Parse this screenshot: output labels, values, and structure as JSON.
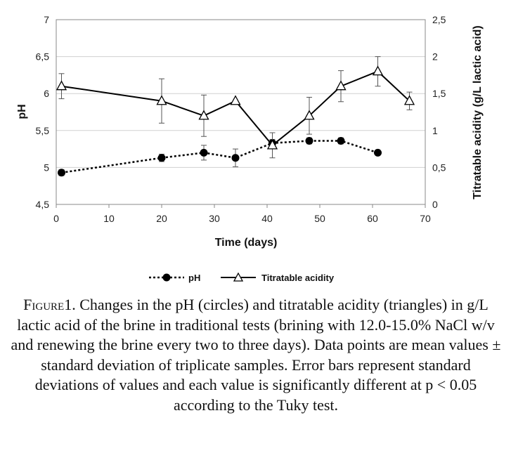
{
  "chart_data": {
    "type": "line",
    "xlabel": "Time (days)",
    "ylabel": "pH",
    "y2label": "Titratable acidity (g/L lactic acid)",
    "xlim": [
      0,
      70
    ],
    "ylim": [
      4.5,
      7
    ],
    "y2lim": [
      0,
      2.5
    ],
    "x_ticks": [
      "0",
      "10",
      "20",
      "30",
      "40",
      "50",
      "60",
      "70"
    ],
    "y_ticks": [
      "4,5",
      "5",
      "5,5",
      "6",
      "6,5",
      "7"
    ],
    "y2_ticks": [
      "0",
      "0,5",
      "1",
      "1,5",
      "2",
      "2,5"
    ],
    "grid": "horizontal",
    "legend_position": "bottom",
    "series": [
      {
        "name": "pH",
        "axis": "left",
        "style": "dotted line, filled circle markers",
        "x": [
          1,
          20,
          28,
          34,
          41,
          48,
          54,
          61
        ],
        "y": [
          4.93,
          5.13,
          5.2,
          5.13,
          5.33,
          5.36,
          5.36,
          5.2
        ],
        "error": [
          0.04,
          0.05,
          0.1,
          0.12,
          0.05,
          0.04,
          0.04,
          0.0
        ]
      },
      {
        "name": "Titratable acidity",
        "axis": "right",
        "style": "solid line, open triangle markers",
        "x": [
          1,
          20,
          28,
          34,
          41,
          48,
          54,
          61,
          67
        ],
        "y": [
          1.6,
          1.4,
          1.2,
          1.4,
          0.8,
          1.2,
          1.6,
          1.8,
          1.4
        ],
        "error": [
          0.17,
          0.3,
          0.28,
          0.0,
          0.17,
          0.25,
          0.21,
          0.2,
          0.12
        ]
      }
    ]
  },
  "caption": {
    "figure_label": "Figure",
    "figure_number": "1.",
    "text": "Changes in the pH (circles) and titratable acidity (triangles) in g/L lactic acid of the brine in traditional tests (brining with 12.0-15.0% NaCl w/v and renewing the brine every two to three days). Data points are mean values ± standard deviation of triplicate samples. Error bars represent standard deviations of values and each value is significantly different at p < 0.05 according to the Tuky test."
  }
}
